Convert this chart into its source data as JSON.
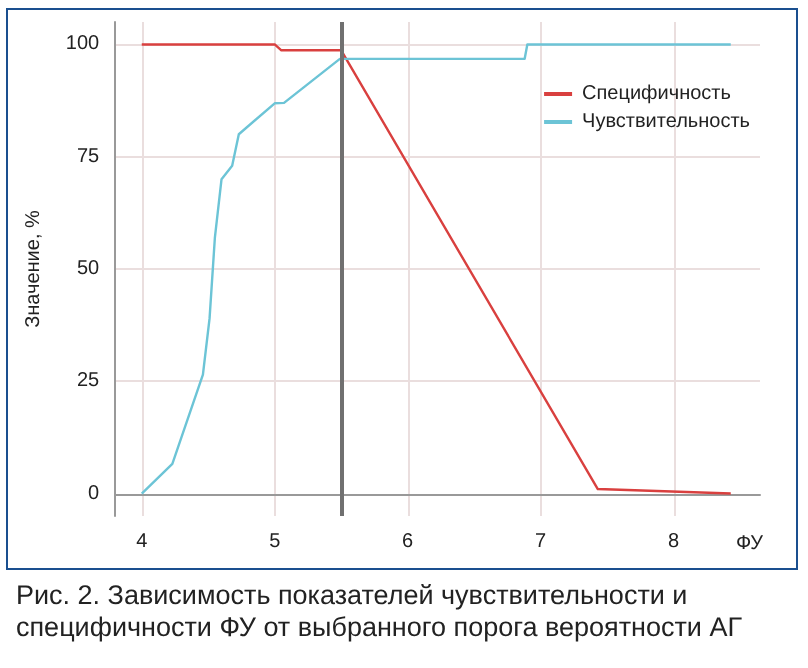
{
  "chart_data": {
    "type": "line",
    "xlabel": "ФУ",
    "ylabel": "Значение, %",
    "annotations": [
      "Рис. 2. Зависимость показателей чувствительности и специфичности ФУ от выбранного порога вероятности АГ"
    ],
    "series": [
      {
        "name": "Специфичность",
        "color": "#d9403f",
        "x": [
          4,
          5.0,
          5.05,
          5.5,
          7.43,
          8.43
        ],
        "values": [
          100,
          100,
          98.7,
          98.7,
          1,
          0
        ]
      },
      {
        "name": "Чувствительность",
        "color": "#6cc4d6",
        "x": [
          4,
          4.23,
          4.46,
          4.51,
          4.55,
          4.6,
          4.68,
          4.73,
          5.0,
          5.07,
          5.49,
          6.88,
          6.9,
          8.43
        ],
        "values": [
          0,
          6.6,
          26.5,
          39,
          57,
          70,
          73,
          80,
          86.9,
          87,
          96.8,
          96.8,
          100,
          100
        ]
      }
    ],
    "xlim": [
      3.8,
      8.65
    ],
    "xticks": [
      4,
      5,
      6,
      7,
      8
    ],
    "ylim": [
      -5,
      105
    ],
    "yticks": [
      0,
      25,
      50,
      75,
      100
    ],
    "ref_lines": [
      {
        "axis": "x",
        "value": 5.5,
        "color": "#707070"
      }
    ],
    "grid": true,
    "legend": "top right",
    "marker": "none",
    "line_style": "solid"
  }
}
